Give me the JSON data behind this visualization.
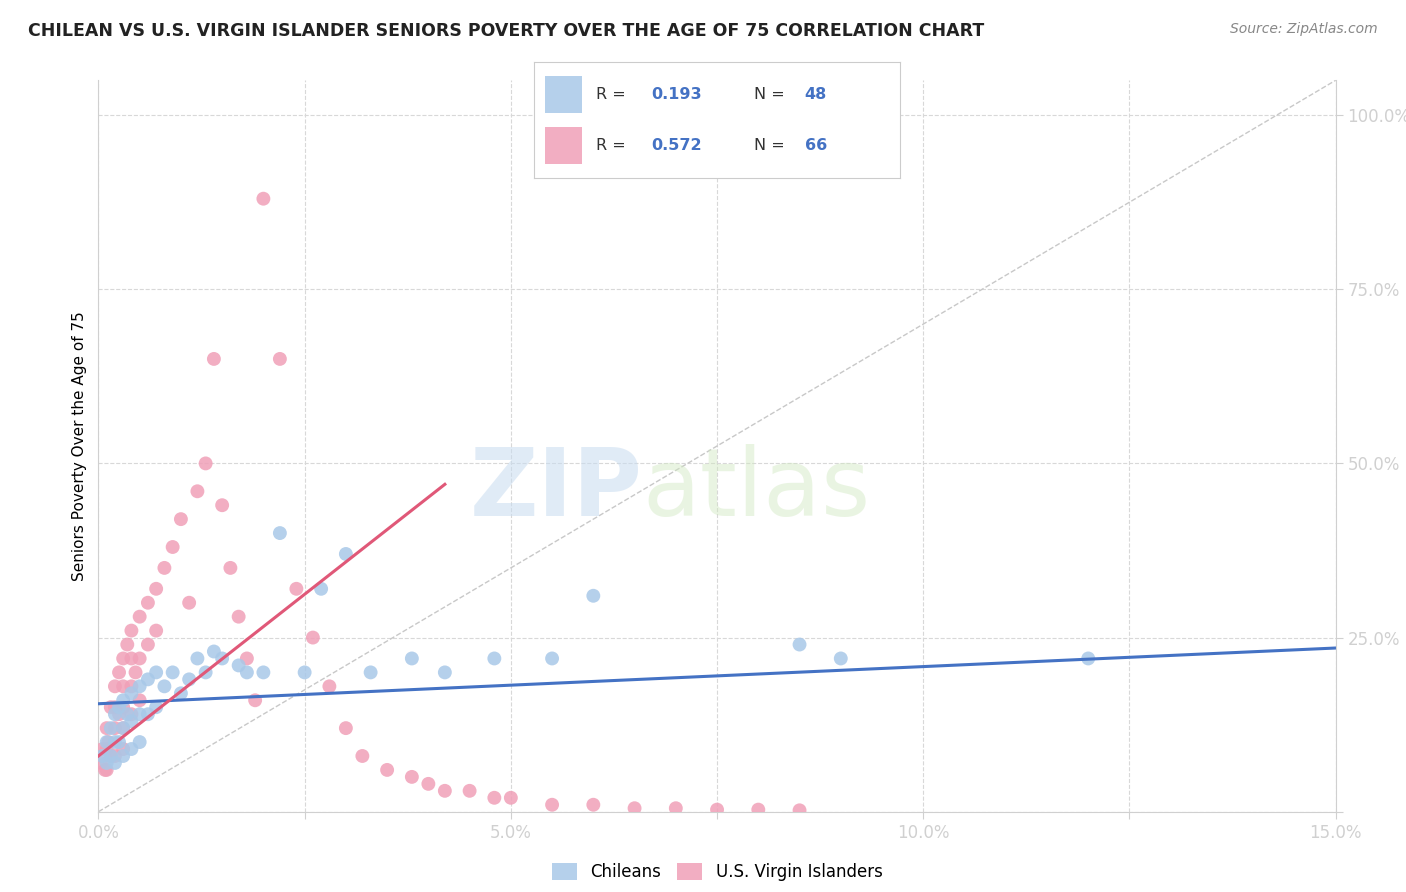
{
  "title": "CHILEAN VS U.S. VIRGIN ISLANDER SENIORS POVERTY OVER THE AGE OF 75 CORRELATION CHART",
  "source": "Source: ZipAtlas.com",
  "ylabel": "Seniors Poverty Over the Age of 75",
  "xlim": [
    0.0,
    0.15
  ],
  "ylim": [
    0.0,
    1.05
  ],
  "xticks": [
    0.0,
    0.025,
    0.05,
    0.075,
    0.1,
    0.125,
    0.15
  ],
  "xticklabels": [
    "0.0%",
    "",
    "5.0%",
    "",
    "10.0%",
    "",
    "15.0%"
  ],
  "yticks_right": [
    0.0,
    0.25,
    0.5,
    0.75,
    1.0
  ],
  "yticklabels_right": [
    "",
    "25.0%",
    "50.0%",
    "75.0%",
    "100.0%"
  ],
  "blue_color": "#A8C8E8",
  "pink_color": "#F0A0B8",
  "blue_line_color": "#4472C4",
  "pink_line_color": "#E05878",
  "diagonal_color": "#C8C8C8",
  "watermark_zip": "ZIP",
  "watermark_atlas": "atlas",
  "legend_r_blue": "0.193",
  "legend_n_blue": "48",
  "legend_r_pink": "0.572",
  "legend_n_pink": "66",
  "blue_scatter_x": [
    0.0005,
    0.001,
    0.001,
    0.0015,
    0.0015,
    0.002,
    0.002,
    0.002,
    0.0025,
    0.0025,
    0.003,
    0.003,
    0.003,
    0.0035,
    0.004,
    0.004,
    0.004,
    0.005,
    0.005,
    0.005,
    0.006,
    0.006,
    0.007,
    0.007,
    0.008,
    0.009,
    0.01,
    0.011,
    0.012,
    0.013,
    0.014,
    0.015,
    0.017,
    0.018,
    0.02,
    0.022,
    0.025,
    0.027,
    0.03,
    0.033,
    0.038,
    0.042,
    0.048,
    0.055,
    0.06,
    0.085,
    0.09,
    0.12
  ],
  "blue_scatter_y": [
    0.08,
    0.1,
    0.07,
    0.12,
    0.08,
    0.14,
    0.1,
    0.07,
    0.15,
    0.1,
    0.16,
    0.12,
    0.08,
    0.14,
    0.17,
    0.13,
    0.09,
    0.18,
    0.14,
    0.1,
    0.19,
    0.14,
    0.2,
    0.15,
    0.18,
    0.2,
    0.17,
    0.19,
    0.22,
    0.2,
    0.23,
    0.22,
    0.21,
    0.2,
    0.2,
    0.4,
    0.2,
    0.32,
    0.37,
    0.2,
    0.22,
    0.2,
    0.22,
    0.22,
    0.31,
    0.24,
    0.22,
    0.22
  ],
  "pink_scatter_x": [
    0.0003,
    0.0005,
    0.0008,
    0.001,
    0.001,
    0.001,
    0.0012,
    0.0015,
    0.0015,
    0.002,
    0.002,
    0.002,
    0.002,
    0.0025,
    0.0025,
    0.003,
    0.003,
    0.003,
    0.003,
    0.003,
    0.0035,
    0.004,
    0.004,
    0.004,
    0.004,
    0.0045,
    0.005,
    0.005,
    0.005,
    0.006,
    0.006,
    0.007,
    0.007,
    0.008,
    0.009,
    0.01,
    0.011,
    0.012,
    0.013,
    0.014,
    0.015,
    0.016,
    0.017,
    0.018,
    0.019,
    0.02,
    0.022,
    0.024,
    0.026,
    0.028,
    0.03,
    0.032,
    0.035,
    0.038,
    0.04,
    0.042,
    0.045,
    0.048,
    0.05,
    0.055,
    0.06,
    0.065,
    0.07,
    0.075,
    0.08,
    0.085
  ],
  "pink_scatter_y": [
    0.07,
    0.09,
    0.06,
    0.12,
    0.09,
    0.06,
    0.1,
    0.15,
    0.08,
    0.18,
    0.15,
    0.12,
    0.08,
    0.2,
    0.14,
    0.22,
    0.18,
    0.15,
    0.12,
    0.09,
    0.24,
    0.26,
    0.22,
    0.18,
    0.14,
    0.2,
    0.28,
    0.22,
    0.16,
    0.3,
    0.24,
    0.32,
    0.26,
    0.35,
    0.38,
    0.42,
    0.3,
    0.46,
    0.5,
    0.65,
    0.44,
    0.35,
    0.28,
    0.22,
    0.16,
    0.88,
    0.65,
    0.32,
    0.25,
    0.18,
    0.12,
    0.08,
    0.06,
    0.05,
    0.04,
    0.03,
    0.03,
    0.02,
    0.02,
    0.01,
    0.01,
    0.005,
    0.005,
    0.003,
    0.003,
    0.002
  ],
  "blue_trend_x": [
    0.0,
    0.15
  ],
  "blue_trend_y": [
    0.155,
    0.235
  ],
  "pink_trend_x": [
    0.0,
    0.042
  ],
  "pink_trend_y": [
    0.08,
    0.47
  ]
}
